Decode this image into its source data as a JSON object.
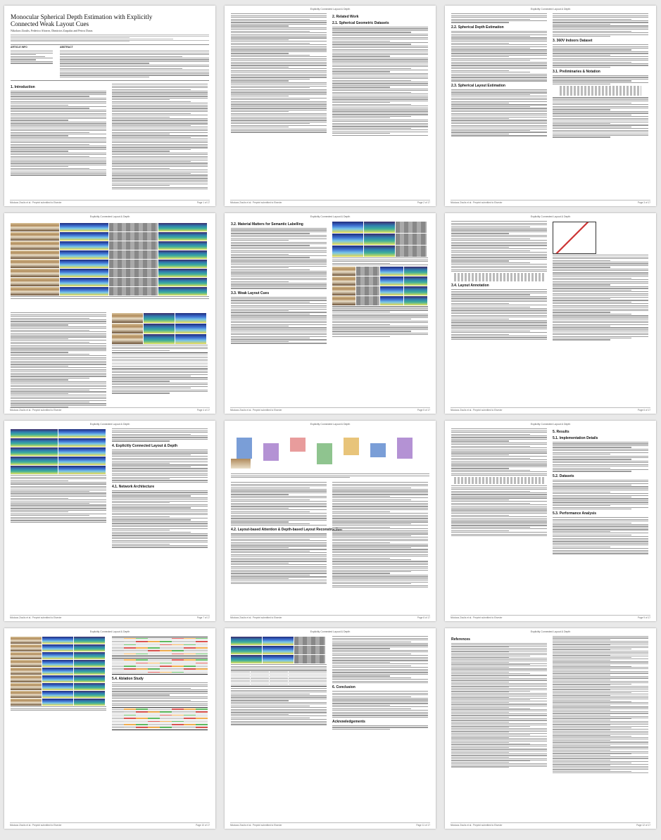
{
  "paper": {
    "title": "Monocular Spherical Depth Estimation with Explicitly Connected Weak Layout Cues",
    "authors": "Nikolaos Zioulis, Federico Alvarez, Dimitrios Zarpalas and Petros Daras",
    "running_head": "Explicitly Connected Layout & Depth",
    "footer_left": "Nikolaos Zioulis et al.: Preprint submitted to Elsevier",
    "info": {
      "article_info": "ARTICLE INFO",
      "abstract": "ABSTRACT"
    }
  },
  "pages": [
    {
      "number": "Page 1 of 17",
      "headings": [
        "1. Introduction"
      ]
    },
    {
      "number": "Page 2 of 17",
      "headings": [
        "2. Related Work",
        "2.1. Spherical Geometric Datasets"
      ]
    },
    {
      "number": "Page 3 of 17",
      "headings": [
        "2.2. Spherical Depth Estimation",
        "2.3. Spherical Layout Estimation",
        "3. 360V Indoors Dataset",
        "3.1. Preliminaries & Notation"
      ]
    },
    {
      "number": "Page 4 of 17",
      "headings": []
    },
    {
      "number": "Page 5 of 17",
      "headings": [
        "3.2. Material Matters for Semantic Labelling",
        "3.3. Weak Layout Cues"
      ]
    },
    {
      "number": "Page 6 of 17",
      "headings": [
        "3.4. Layout Annotation"
      ]
    },
    {
      "number": "Page 7 of 17",
      "headings": [
        "4. Explicitly Connected Layout & Depth",
        "4.1. Network Architecture"
      ]
    },
    {
      "number": "Page 8 of 17",
      "headings": [
        "4.2. Layout-based Attention & Depth-based Layout Reconstruction"
      ]
    },
    {
      "number": "Page 9 of 17",
      "headings": [
        "5. Results",
        "5.1. Implementation Details",
        "5.2. Datasets",
        "5.3. Performance Analysis"
      ]
    },
    {
      "number": "Page 10 of 17",
      "headings": [
        "5.4. Ablation Study"
      ]
    },
    {
      "number": "Page 11 of 17",
      "headings": [
        "6. Conclusion",
        "Acknowledgements"
      ]
    },
    {
      "number": "Page 12 of 17",
      "headings": [
        "References"
      ]
    }
  ],
  "colors": {
    "accent_red": "#d9534f",
    "accent_orange": "#f0ad4e",
    "accent_green": "#5cb85c",
    "depth_blue": "#2c3e9e",
    "depth_yellow": "#e8d84a"
  }
}
